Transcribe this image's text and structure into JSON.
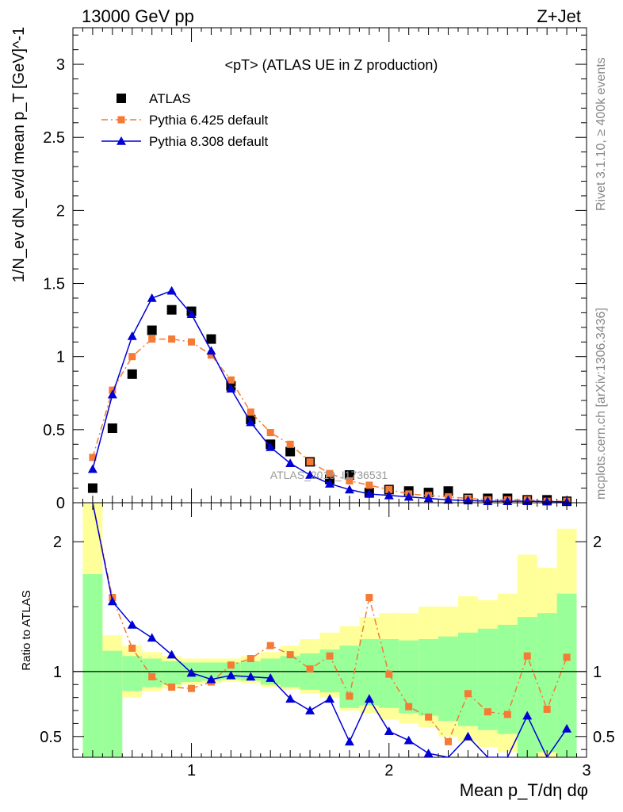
{
  "header": {
    "left": "13000 GeV pp",
    "right": "Z+Jet"
  },
  "side_text": {
    "rivet": "Rivet 3.1.10, ≥ 400k events",
    "mcplots": "mcplots.cern.ch [arXiv:1306.3436]"
  },
  "watermark": "ATLAS_2019_I1736531",
  "chart_data": [
    {
      "type": "scatter",
      "panel": "main",
      "title": "<pT> (ATLAS UE in Z production)",
      "ylabel": "1/N_ev dN_ev/d mean p_T [GeV]^-1",
      "xlim": [
        0.4,
        3.0
      ],
      "ylim": [
        0,
        3.25
      ],
      "yticks": [
        "0",
        "0.5",
        "1",
        "1.5",
        "2",
        "2.5",
        "3"
      ],
      "series": [
        {
          "name": "ATLAS",
          "color": "#000000",
          "marker": "square",
          "x": [
            0.5,
            0.6,
            0.7,
            0.8,
            0.9,
            1.0,
            1.1,
            1.2,
            1.3,
            1.4,
            1.5,
            1.6,
            1.7,
            1.8,
            1.9,
            2.0,
            2.1,
            2.2,
            2.3,
            2.4,
            2.5,
            2.6,
            2.7,
            2.8,
            2.9
          ],
          "y": [
            0.1,
            0.51,
            0.88,
            1.18,
            1.32,
            1.31,
            1.12,
            0.8,
            0.57,
            0.4,
            0.35,
            0.28,
            0.16,
            0.19,
            0.07,
            0.09,
            0.08,
            0.07,
            0.08,
            0.03,
            0.03,
            0.03,
            0.02,
            0.02,
            0.01
          ]
        },
        {
          "name": "Pythia 6.425 default",
          "color": "#f47a35",
          "marker": "square-small",
          "line": "dashdot",
          "x": [
            0.5,
            0.6,
            0.7,
            0.8,
            0.9,
            1.0,
            1.1,
            1.2,
            1.3,
            1.4,
            1.5,
            1.6,
            1.7,
            1.8,
            1.9,
            2.0,
            2.1,
            2.2,
            2.3,
            2.4,
            2.5,
            2.6,
            2.7,
            2.8,
            2.9
          ],
          "y": [
            0.31,
            0.77,
            1.0,
            1.12,
            1.12,
            1.1,
            1.01,
            0.84,
            0.62,
            0.48,
            0.4,
            0.28,
            0.2,
            0.15,
            0.12,
            0.09,
            0.06,
            0.05,
            0.04,
            0.03,
            0.02,
            0.02,
            0.02,
            0.01,
            0.01
          ],
          "ratio": [
            2.9,
            1.57,
            1.18,
            0.96,
            0.88,
            0.87,
            0.92,
            1.05,
            1.1,
            1.2,
            1.13,
            1.02,
            1.12,
            0.81,
            1.57,
            0.98,
            0.73,
            0.65,
            0.46,
            0.83,
            0.69,
            0.67,
            1.12,
            0.71,
            1.11
          ]
        },
        {
          "name": "Pythia 8.308 default",
          "color": "#0000d6",
          "marker": "triangle",
          "line": "solid",
          "x": [
            0.5,
            0.6,
            0.7,
            0.8,
            0.9,
            1.0,
            1.1,
            1.2,
            1.3,
            1.4,
            1.5,
            1.6,
            1.7,
            1.8,
            1.9,
            2.0,
            2.1,
            2.2,
            2.3,
            2.4,
            2.5,
            2.6,
            2.7,
            2.8,
            2.9
          ],
          "y": [
            0.23,
            0.74,
            1.14,
            1.4,
            1.45,
            1.29,
            1.04,
            0.78,
            0.55,
            0.38,
            0.27,
            0.19,
            0.13,
            0.09,
            0.06,
            0.05,
            0.04,
            0.03,
            0.02,
            0.015,
            0.01,
            0.01,
            0.01,
            0.008,
            0.006
          ],
          "ratio": [
            2.3,
            1.54,
            1.36,
            1.26,
            1.13,
            0.99,
            0.94,
            0.97,
            0.96,
            0.95,
            0.79,
            0.7,
            0.79,
            0.46,
            0.79,
            0.54,
            0.47,
            0.37,
            0.28,
            0.5,
            0.3,
            0.26,
            0.66,
            0.3,
            0.56
          ]
        }
      ]
    },
    {
      "type": "area",
      "panel": "ratio",
      "ylabel": "Ratio to ATLAS",
      "xlabel": "Mean p_T/dη dφ",
      "xlim": [
        0.4,
        3.0
      ],
      "ylim": [
        0.34,
        2.3
      ],
      "xticks": [
        "1",
        "2",
        "3"
      ],
      "yticks": [
        "0.5",
        "1",
        "2"
      ],
      "reference": 1,
      "bands": {
        "x_edges": [
          0.45,
          0.55,
          0.65,
          0.75,
          0.85,
          0.95,
          1.05,
          1.15,
          1.25,
          1.35,
          1.45,
          1.55,
          1.65,
          1.75,
          1.85,
          1.95,
          2.05,
          2.15,
          2.25,
          2.35,
          2.45,
          2.55,
          2.65,
          2.75,
          2.85,
          2.95
        ],
        "green_low": [
          0.3,
          0.3,
          0.85,
          0.88,
          0.9,
          0.92,
          0.93,
          0.94,
          0.93,
          0.9,
          0.88,
          0.86,
          0.84,
          0.72,
          0.74,
          0.72,
          0.68,
          0.66,
          0.62,
          0.58,
          0.55,
          0.52,
          0.3,
          0.38,
          0.3
        ],
        "green_high": [
          1.75,
          1.16,
          1.12,
          1.1,
          1.08,
          1.07,
          1.07,
          1.07,
          1.08,
          1.1,
          1.12,
          1.14,
          1.17,
          1.2,
          1.25,
          1.25,
          1.24,
          1.25,
          1.27,
          1.3,
          1.33,
          1.36,
          1.42,
          1.45,
          1.6
        ],
        "yellow_low": [
          0.3,
          0.76,
          0.8,
          0.85,
          0.87,
          0.9,
          0.91,
          0.92,
          0.91,
          0.88,
          0.86,
          0.83,
          0.8,
          0.7,
          0.68,
          0.63,
          0.6,
          0.57,
          0.5,
          0.46,
          0.42,
          0.38,
          0.3,
          0.3,
          0.3
        ],
        "yellow_high": [
          2.3,
          1.28,
          1.2,
          1.15,
          1.12,
          1.1,
          1.1,
          1.1,
          1.12,
          1.15,
          1.2,
          1.25,
          1.3,
          1.35,
          1.42,
          1.45,
          1.45,
          1.5,
          1.5,
          1.58,
          1.55,
          1.6,
          1.9,
          1.8,
          2.1
        ]
      }
    }
  ]
}
